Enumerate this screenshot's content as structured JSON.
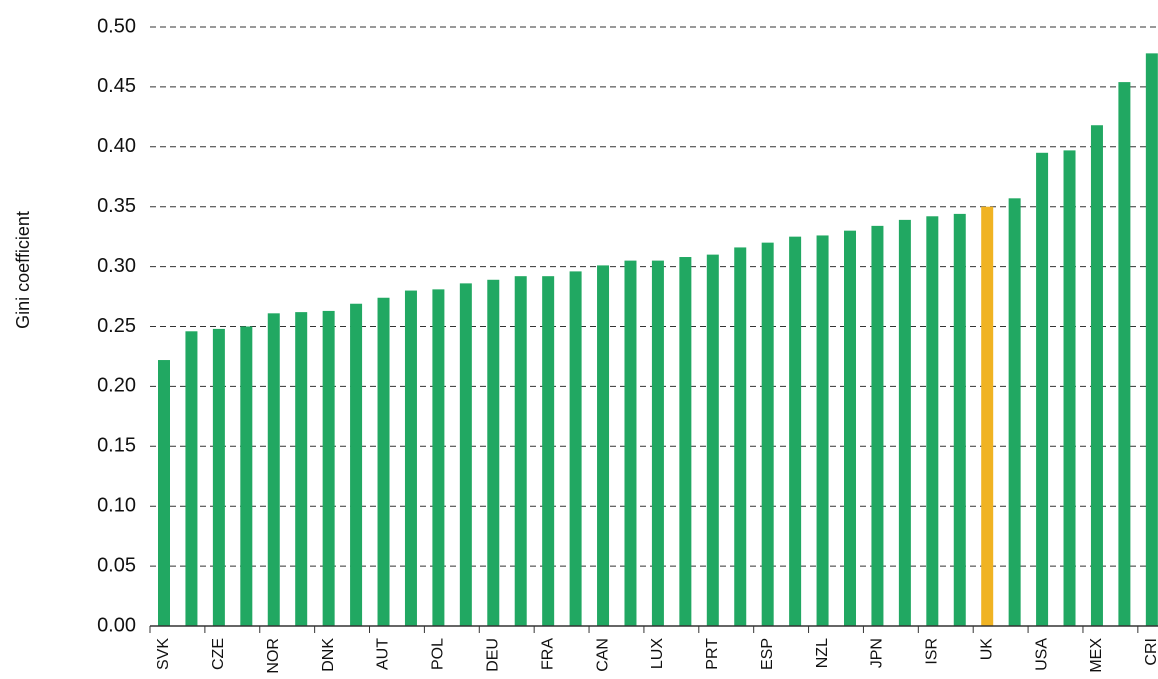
{
  "chart_data": {
    "type": "bar",
    "y_label": "Gini coefficient",
    "categories": [
      "SVK",
      null,
      "CZE",
      null,
      "NOR",
      null,
      "DNK",
      null,
      "AUT",
      null,
      "POL",
      null,
      "DEU",
      null,
      "FRA",
      null,
      "CAN",
      null,
      "LUX",
      null,
      "PRT",
      null,
      "ESP",
      null,
      "NZL",
      null,
      "JPN",
      null,
      "ISR",
      null,
      "UK",
      null,
      "USA",
      null,
      "MEX",
      null,
      "CRI"
    ],
    "values": [
      0.222,
      0.246,
      0.248,
      0.25,
      0.261,
      0.262,
      0.263,
      0.269,
      0.274,
      0.28,
      0.281,
      0.286,
      0.289,
      0.292,
      0.292,
      0.296,
      0.301,
      0.305,
      0.305,
      0.308,
      0.31,
      0.316,
      0.32,
      0.325,
      0.326,
      0.33,
      0.334,
      0.339,
      0.342,
      0.344,
      0.35,
      0.357,
      0.395,
      0.397,
      0.418,
      0.454,
      0.478
    ],
    "colors": [
      "#21a862",
      "#21a862",
      "#21a862",
      "#21a862",
      "#21a862",
      "#21a862",
      "#21a862",
      "#21a862",
      "#21a862",
      "#21a862",
      "#21a862",
      "#21a862",
      "#21a862",
      "#21a862",
      "#21a862",
      "#21a862",
      "#21a862",
      "#21a862",
      "#21a862",
      "#21a862",
      "#21a862",
      "#21a862",
      "#21a862",
      "#21a862",
      "#21a862",
      "#21a862",
      "#21a862",
      "#21a862",
      "#21a862",
      "#21a862",
      "#f0b323",
      "#21a862",
      "#21a862",
      "#21a862",
      "#21a862",
      "#21a862",
      "#21a862"
    ],
    "ylim": [
      0,
      0.5
    ],
    "yticks": [
      {
        "value": 0,
        "label": "0.00"
      },
      0.05,
      {
        "value": 0.1,
        "label": "0.10"
      },
      0.15,
      {
        "value": 0.2,
        "label": "0.20"
      },
      0.25,
      {
        "value": 0.3,
        "label": "0.30"
      },
      0.35,
      {
        "value": 0.4,
        "label": "0.40"
      },
      0.45,
      {
        "value": 0.5,
        "label": "0.50"
      }
    ],
    "grid": true
  }
}
